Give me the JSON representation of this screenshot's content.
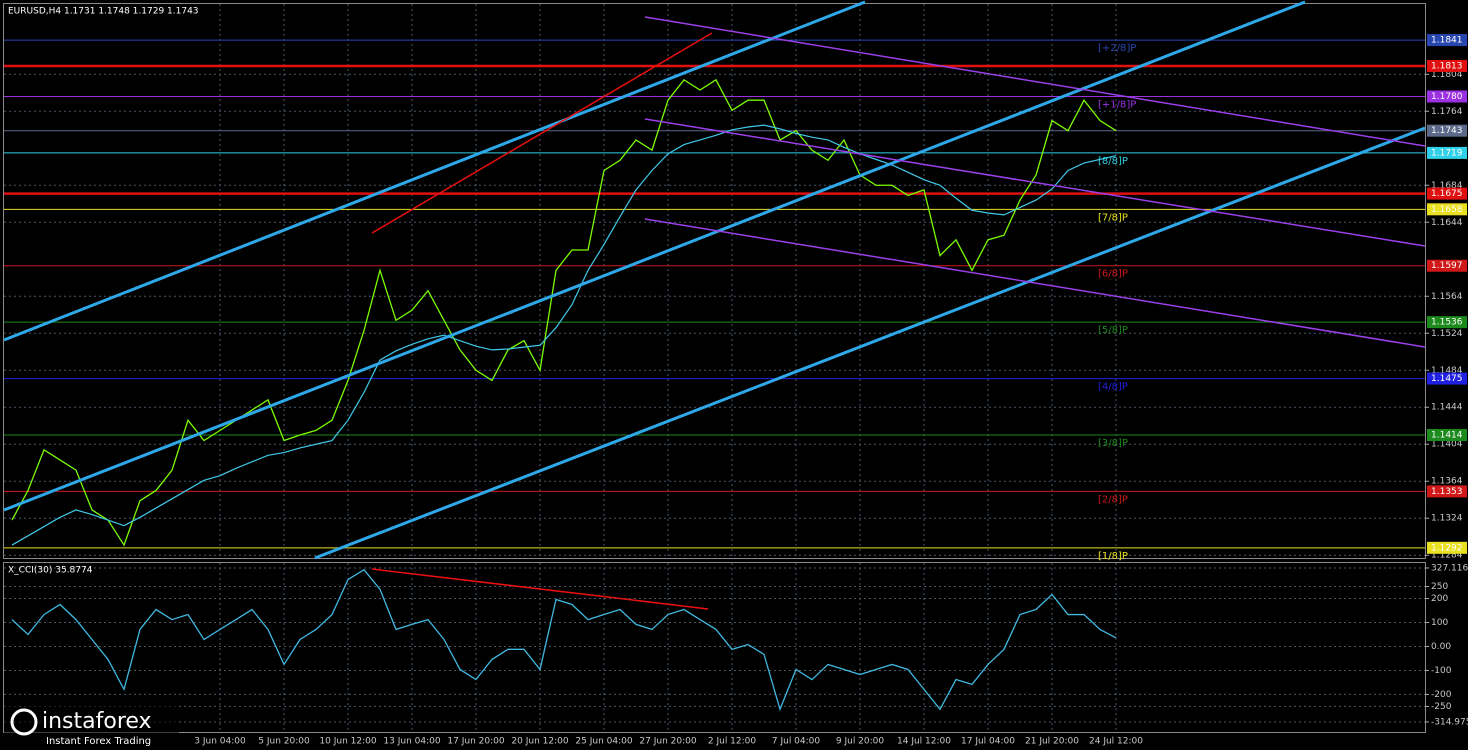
{
  "chart_data": [
    {
      "type": "line",
      "title": "EURUSD,H4  1.1731 1.1748 1.1729 1.1743",
      "categories": [
        null,
        null,
        null,
        null,
        null,
        null,
        null,
        null,
        null,
        null,
        null,
        null,
        null,
        "3 Jun 04:00",
        null,
        null,
        null,
        "5 Jun 20:00",
        null,
        null,
        null,
        "10 Jun 12:00",
        null,
        null,
        null,
        "13 Jun 04:00",
        null,
        null,
        null,
        "17 Jun 20:00",
        null,
        null,
        null,
        "20 Jun 12:00",
        null,
        null,
        null,
        "25 Jun 04:00",
        null,
        null,
        null,
        "27 Jun 20:00",
        null,
        null,
        null,
        "2 Jul 12:00",
        null,
        null,
        null,
        "7 Jul 04:00",
        null,
        null,
        null,
        "9 Jul 20:00",
        null,
        null,
        null,
        "14 Jul 12:00",
        null,
        null,
        null,
        "17 Jul 04:00",
        null,
        null,
        null,
        "21 Jul 20:00",
        null,
        null,
        null,
        "24 Jul 12:00"
      ],
      "series": [
        {
          "color": "#7cfc00",
          "values": [
            1.1322,
            1.1354,
            1.1398,
            1.1387,
            1.1376,
            1.1333,
            1.1322,
            1.1295,
            1.1343,
            1.1354,
            1.1376,
            1.143,
            1.1408,
            1.1419,
            1.143,
            1.1441,
            1.1452,
            1.1408,
            1.1414,
            1.1419,
            1.143,
            1.1473,
            1.1527,
            1.1592,
            1.1538,
            1.1549,
            1.157,
            1.1538,
            1.1506,
            1.1484,
            1.1473,
            1.1506,
            1.1516,
            1.1484,
            1.1592,
            1.1614,
            1.1614,
            1.17,
            1.1711,
            1.1733,
            1.1722,
            1.1776,
            1.1798,
            1.1787,
            1.1798,
            1.1765,
            1.1776,
            1.1776,
            1.1733,
            1.1743,
            1.1722,
            1.1711,
            1.1733,
            1.1695,
            1.1684,
            1.1684,
            1.1673,
            1.1679,
            1.1608,
            1.1625,
            1.1592,
            1.1625,
            1.163,
            1.1668,
            1.1695,
            1.1754,
            1.1743,
            1.1776,
            1.1754,
            1.1743
          ]
        },
        {
          "color": "#40c8e8",
          "values": [
            1.1295,
            1.1305,
            1.1315,
            1.1325,
            1.1333,
            1.1328,
            1.1322,
            1.1316,
            1.1325,
            1.1335,
            1.1345,
            1.1355,
            1.1365,
            1.137,
            1.1378,
            1.1385,
            1.1392,
            1.1395,
            1.14,
            1.1404,
            1.1408,
            1.143,
            1.146,
            1.1495,
            1.1505,
            1.1512,
            1.1518,
            1.1522,
            1.1516,
            1.151,
            1.1506,
            1.1507,
            1.1509,
            1.1511,
            1.153,
            1.1555,
            1.1592,
            1.162,
            1.165,
            1.1679,
            1.17,
            1.1718,
            1.1728,
            1.1733,
            1.1738,
            1.1744,
            1.1747,
            1.1749,
            1.1745,
            1.174,
            1.1736,
            1.1733,
            1.1725,
            1.1718,
            1.1712,
            1.1706,
            1.1698,
            1.169,
            1.1684,
            1.167,
            1.1657,
            1.1654,
            1.1652,
            1.166,
            1.1668,
            1.168,
            1.17,
            1.1708,
            1.1712,
            1.1716
          ]
        }
      ],
      "ylim": [
        1.1281,
        1.188
      ],
      "yticks": [
        1.1804,
        1.1764,
        1.1684,
        1.1644,
        1.1564,
        1.1524,
        1.1484,
        1.1444,
        1.1404,
        1.1364,
        1.1324,
        1.1284
      ],
      "grid": true,
      "levels": [
        {
          "value": 1.1841,
          "label": "1.1841",
          "color": "#2846b0",
          "tag": "[+2/8]P"
        },
        {
          "value": 1.1813,
          "label": "1.1813",
          "color": "#e01010"
        },
        {
          "value": 1.178,
          "label": "1.1780",
          "color": "#9b30e0",
          "tag": "[+1/8]P"
        },
        {
          "value": 1.1743,
          "label": "1.1743",
          "color": "#5a6a88"
        },
        {
          "value": 1.1719,
          "label": "1.1719",
          "color": "#30d0e8",
          "tag": "[8/8]P"
        },
        {
          "value": 1.1675,
          "label": "1.1675",
          "color": "#e01010"
        },
        {
          "value": 1.1658,
          "label": "1.1658",
          "color": "#e8e020",
          "tag": "[7/8]P"
        },
        {
          "value": 1.1597,
          "label": "1.1597",
          "color": "#d01818",
          "tag": "[6/8]P"
        },
        {
          "value": 1.1536,
          "label": "1.1536",
          "color": "#1c8a1c",
          "tag": "[5/8]P"
        },
        {
          "value": 1.1475,
          "label": "1.1475",
          "color": "#2020e0",
          "tag": "[4/8]P"
        },
        {
          "value": 1.1414,
          "label": "1.1414",
          "color": "#1c8a1c",
          "tag": "[3/8]P"
        },
        {
          "value": 1.1353,
          "label": "1.1353",
          "color": "#d01818",
          "tag": "[2/8]P"
        },
        {
          "value": 1.1292,
          "label": "1.1292",
          "color": "#e8e020",
          "tag": "[1/8]P"
        }
      ]
    },
    {
      "type": "line",
      "title": "X_CCI(30) 35.8774",
      "series": [
        {
          "color": "#40b8e0",
          "values": [
            112,
            50,
            133,
            175,
            112,
            29,
            -54,
            -179,
            71,
            154,
            112,
            133,
            29,
            71,
            112,
            154,
            71,
            -75,
            29,
            71,
            133,
            279,
            320,
            238,
            71,
            92,
            112,
            29,
            -96,
            -138,
            -54,
            -12,
            -12,
            -96,
            196,
            175,
            112,
            133,
            154,
            92,
            71,
            133,
            154,
            112,
            71,
            -12,
            8,
            -33,
            -262,
            -96,
            -138,
            -75,
            -96,
            -117,
            -96,
            -75,
            -96,
            -179,
            -262,
            -138,
            -158,
            -75,
            -12,
            133,
            154,
            217,
            133,
            133,
            71,
            35.8774
          ]
        }
      ],
      "ylim": [
        -314.975,
        327.116
      ],
      "yticks": [
        327.116,
        250,
        200,
        100,
        {
          "value": 0,
          "label": "0.00"
        },
        -100,
        -200,
        -250,
        -314.975
      ],
      "grid": true
    }
  ],
  "brand": {
    "name": "instaforex",
    "tagline": "Instant Forex Trading"
  }
}
